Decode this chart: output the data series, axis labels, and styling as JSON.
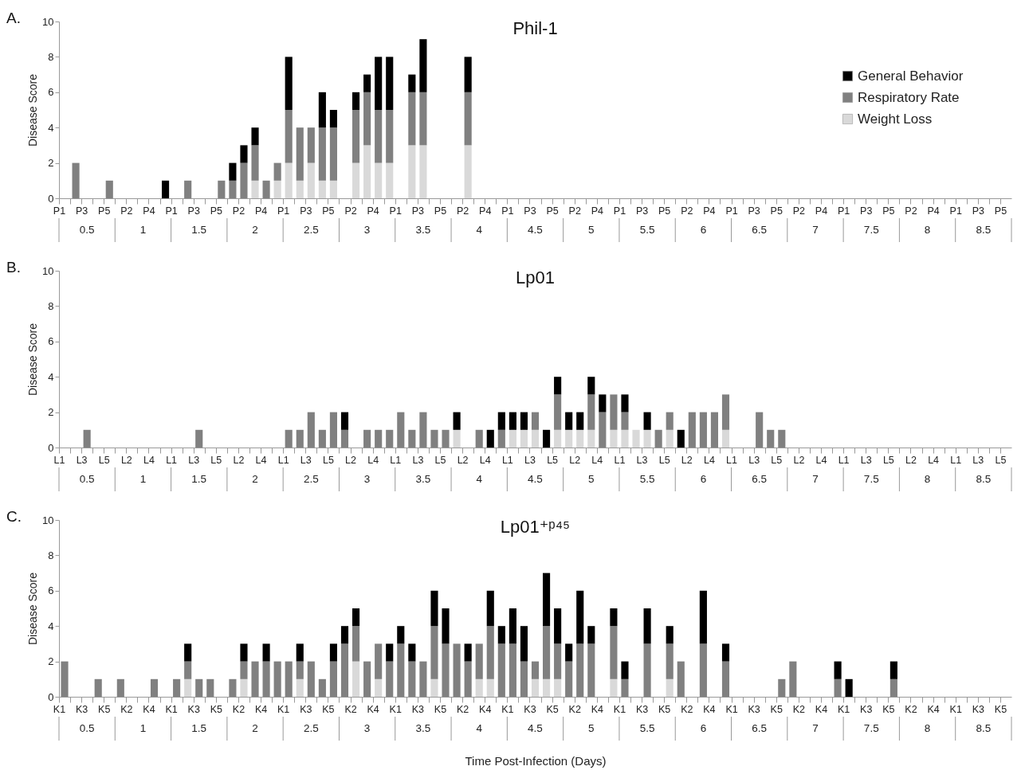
{
  "chart_data": [
    {
      "type": "bar",
      "title": "Phil-1",
      "subtitle": "A.",
      "ylabel": "Disease Score",
      "stacked": true,
      "legend": "top right",
      "ylim": [
        0,
        10
      ],
      "yticks": [
        0,
        2,
        4,
        6,
        8,
        10
      ],
      "categories": [
        "P1",
        null,
        "P3",
        null,
        "P5",
        null,
        "P2",
        null,
        "P4",
        null,
        "P1",
        null,
        "P3",
        null,
        "P5",
        null,
        "P2",
        null,
        "P4",
        null,
        "P1",
        null,
        "P3",
        null,
        "P5",
        null,
        "P2",
        null,
        "P4",
        null,
        "P1",
        null,
        "P3",
        null,
        "P5",
        null,
        "P2",
        null,
        "P4",
        null,
        "P1",
        null,
        "P3",
        null,
        "P5",
        null,
        "P2",
        null,
        "P4",
        null,
        "P1",
        null,
        "P3",
        null,
        "P5",
        null,
        "P2",
        null,
        "P4",
        null,
        "P1",
        null,
        "P3",
        null,
        "P5",
        null,
        "P2",
        null,
        "P4",
        null,
        "P1",
        null,
        "P3",
        null,
        "P5",
        null,
        "P2",
        null,
        "P4",
        null,
        "P1",
        null,
        "P3",
        null,
        "P5"
      ],
      "annotations": [
        "0.5",
        "1",
        "1.5",
        "2",
        "2.5",
        "3",
        "3.5",
        "4",
        "4.5",
        "5",
        "5.5",
        "6",
        "6.5",
        "7",
        "7.5",
        "8",
        "8.5"
      ],
      "series": [
        {
          "name": "Weight Loss",
          "color": "#d9d9d9",
          "values": [
            0,
            0,
            0,
            0,
            0,
            0,
            0,
            0,
            0,
            0,
            0,
            0,
            0,
            0,
            0,
            0,
            0,
            1,
            0,
            1,
            2,
            1,
            2,
            1,
            1,
            0,
            2,
            3,
            2,
            2,
            0,
            3,
            3,
            0,
            0,
            0,
            3,
            0,
            0,
            0,
            0,
            0,
            0,
            0,
            0,
            0,
            0,
            0,
            0,
            0,
            0,
            0,
            0,
            0,
            0,
            0,
            0,
            0,
            0,
            0,
            0,
            0,
            0,
            0,
            0,
            0,
            0,
            0,
            0,
            0,
            0,
            0,
            0,
            0,
            0,
            0,
            0,
            0,
            0,
            0,
            0,
            0,
            0,
            0,
            0
          ]
        },
        {
          "name": "Respiratory Rate",
          "color": "#808080",
          "values": [
            0,
            2,
            0,
            0,
            1,
            0,
            0,
            0,
            0,
            0,
            0,
            1,
            0,
            0,
            1,
            1,
            2,
            2,
            1,
            1,
            3,
            3,
            2,
            3,
            3,
            0,
            3,
            3,
            3,
            3,
            0,
            3,
            3,
            0,
            0,
            0,
            3,
            0,
            0,
            0,
            0,
            0,
            0,
            0,
            0,
            0,
            0,
            0,
            0,
            0,
            0,
            0,
            0,
            0,
            0,
            0,
            0,
            0,
            0,
            0,
            0,
            0,
            0,
            0,
            0,
            0,
            0,
            0,
            0,
            0,
            0,
            0,
            0,
            0,
            0,
            0,
            0,
            0,
            0,
            0,
            0,
            0,
            0,
            0,
            0
          ]
        },
        {
          "name": "General Behavior",
          "color": "#000000",
          "values": [
            0,
            0,
            0,
            0,
            0,
            0,
            0,
            0,
            0,
            1,
            0,
            0,
            0,
            0,
            0,
            1,
            1,
            1,
            0,
            0,
            3,
            0,
            0,
            2,
            1,
            0,
            1,
            1,
            3,
            3,
            0,
            1,
            3,
            0,
            0,
            0,
            2,
            0,
            0,
            0,
            0,
            0,
            0,
            0,
            0,
            0,
            0,
            0,
            0,
            0,
            0,
            0,
            0,
            0,
            0,
            0,
            0,
            0,
            0,
            0,
            0,
            0,
            0,
            0,
            0,
            0,
            0,
            0,
            0,
            0,
            0,
            0,
            0,
            0,
            0,
            0,
            0,
            0,
            0,
            0,
            0,
            0,
            0,
            0,
            0
          ]
        }
      ]
    },
    {
      "type": "bar",
      "title": "Lp01",
      "subtitle": "B.",
      "ylabel": "Disease Score",
      "stacked": true,
      "ylim": [
        0,
        10
      ],
      "yticks": [
        0,
        2,
        4,
        6,
        8,
        10
      ],
      "categories": [
        "L1",
        null,
        "L3",
        null,
        "L5",
        null,
        "L2",
        null,
        "L4",
        null,
        "L1",
        null,
        "L3",
        null,
        "L5",
        null,
        "L2",
        null,
        "L4",
        null,
        "L1",
        null,
        "L3",
        null,
        "L5",
        null,
        "L2",
        null,
        "L4",
        null,
        "L1",
        null,
        "L3",
        null,
        "L5",
        null,
        "L2",
        null,
        "L4",
        null,
        "L1",
        null,
        "L3",
        null,
        "L5",
        null,
        "L2",
        null,
        "L4",
        null,
        "L1",
        null,
        "L3",
        null,
        "L5",
        null,
        "L2",
        null,
        "L4",
        null,
        "L1",
        null,
        "L3",
        null,
        "L5",
        null,
        "L2",
        null,
        "L4",
        null,
        "L1",
        null,
        "L3",
        null,
        "L5",
        null,
        "L2",
        null,
        "L4",
        null,
        "L1",
        null,
        "L3",
        null,
        "L5"
      ],
      "annotations": [
        "0.5",
        "1",
        "1.5",
        "2",
        "2.5",
        "3",
        "3.5",
        "4",
        "4.5",
        "5",
        "5.5",
        "6",
        "6.5",
        "7",
        "7.5",
        "8",
        "8.5"
      ],
      "series": [
        {
          "color": "#d9d9d9",
          "values": [
            0,
            0,
            0,
            0,
            0,
            0,
            0,
            0,
            0,
            0,
            0,
            0,
            0,
            0,
            0,
            0,
            0,
            0,
            0,
            0,
            0,
            0,
            0,
            0,
            0,
            0,
            0,
            0,
            0,
            0,
            0,
            0,
            0,
            0,
            0,
            1,
            0,
            0,
            0,
            0,
            1,
            1,
            1,
            0,
            1,
            1,
            1,
            1,
            0,
            1,
            1,
            1,
            1,
            0,
            1,
            0,
            0,
            0,
            0,
            1,
            0,
            0,
            0,
            0,
            0,
            0,
            0,
            0,
            0,
            0,
            0,
            0,
            0,
            0,
            0,
            0,
            0,
            0,
            0,
            0,
            0,
            0,
            0,
            0,
            0
          ]
        },
        {
          "color": "#808080",
          "values": [
            0,
            0,
            1,
            0,
            0,
            0,
            0,
            0,
            0,
            0,
            0,
            0,
            1,
            0,
            0,
            0,
            0,
            0,
            0,
            0,
            1,
            1,
            2,
            1,
            2,
            1,
            0,
            1,
            1,
            1,
            2,
            1,
            2,
            1,
            1,
            0,
            0,
            1,
            0,
            1,
            0,
            0,
            1,
            0,
            2,
            0,
            0,
            2,
            2,
            2,
            1,
            0,
            0,
            1,
            1,
            0,
            2,
            2,
            2,
            2,
            0,
            0,
            2,
            1,
            1,
            0,
            0,
            0,
            0,
            0,
            0,
            0,
            0,
            0,
            0,
            0,
            0,
            0,
            0,
            0,
            0,
            0,
            0,
            0,
            0
          ]
        },
        {
          "color": "#000000",
          "values": [
            0,
            0,
            0,
            0,
            0,
            0,
            0,
            0,
            0,
            0,
            0,
            0,
            0,
            0,
            0,
            0,
            0,
            0,
            0,
            0,
            0,
            0,
            0,
            0,
            0,
            1,
            0,
            0,
            0,
            0,
            0,
            0,
            0,
            0,
            0,
            1,
            0,
            0,
            1,
            1,
            1,
            1,
            0,
            1,
            1,
            1,
            1,
            1,
            1,
            0,
            1,
            0,
            1,
            0,
            0,
            1,
            0,
            0,
            0,
            0,
            0,
            0,
            0,
            0,
            0,
            0,
            0,
            0,
            0,
            0,
            0,
            0,
            0,
            0,
            0,
            0,
            0,
            0,
            0,
            0,
            0,
            0,
            0,
            0,
            0
          ]
        }
      ]
    },
    {
      "type": "bar",
      "title": "Lp01⁺ᵖ⁴⁵",
      "subtitle": "C.",
      "ylabel": "Disease Score",
      "xlabel": "Time Post-Infection (Days)",
      "stacked": true,
      "ylim": [
        0,
        10
      ],
      "yticks": [
        0,
        2,
        4,
        6,
        8,
        10
      ],
      "categories": [
        "K1",
        null,
        "K3",
        null,
        "K5",
        null,
        "K2",
        null,
        "K4",
        null,
        "K1",
        null,
        "K3",
        null,
        "K5",
        null,
        "K2",
        null,
        "K4",
        null,
        "K1",
        null,
        "K3",
        null,
        "K5",
        null,
        "K2",
        null,
        "K4",
        null,
        "K1",
        null,
        "K3",
        null,
        "K5",
        null,
        "K2",
        null,
        "K4",
        null,
        "K1",
        null,
        "K3",
        null,
        "K5",
        null,
        "K2",
        null,
        "K4",
        null,
        "K1",
        null,
        "K3",
        null,
        "K5",
        null,
        "K2",
        null,
        "K4",
        null,
        "K1",
        null,
        "K3",
        null,
        "K5",
        null,
        "K2",
        null,
        "K4",
        null,
        "K1",
        null,
        "K3",
        null,
        "K5",
        null,
        "K2",
        null,
        "K4",
        null,
        "K1",
        null,
        "K3",
        null,
        "K5"
      ],
      "annotations": [
        "0.5",
        "1",
        "1.5",
        "2",
        "2.5",
        "3",
        "3.5",
        "4",
        "4.5",
        "5",
        "5.5",
        "6",
        "6.5",
        "7",
        "7.5",
        "8",
        "8.5"
      ],
      "series": [
        {
          "color": "#d9d9d9",
          "values": [
            0,
            0,
            0,
            0,
            0,
            0,
            0,
            0,
            0,
            0,
            0,
            1,
            0,
            0,
            0,
            0,
            1,
            0,
            0,
            0,
            0,
            1,
            0,
            0,
            0,
            0,
            2,
            0,
            1,
            0,
            0,
            0,
            0,
            1,
            0,
            0,
            0,
            1,
            1,
            0,
            0,
            0,
            1,
            1,
            1,
            0,
            0,
            0,
            0,
            1,
            0,
            0,
            0,
            0,
            1,
            0,
            0,
            0,
            0,
            0,
            0,
            0,
            0,
            0,
            0,
            0,
            0,
            0,
            0,
            0,
            0,
            0,
            0,
            0,
            0,
            0,
            0,
            0,
            0,
            0,
            0,
            0,
            0,
            0,
            0
          ]
        },
        {
          "color": "#808080",
          "values": [
            2,
            0,
            0,
            1,
            0,
            1,
            0,
            0,
            1,
            0,
            1,
            1,
            1,
            1,
            0,
            1,
            1,
            2,
            2,
            2,
            2,
            1,
            2,
            1,
            2,
            3,
            2,
            2,
            2,
            2,
            3,
            2,
            2,
            3,
            3,
            3,
            2,
            2,
            3,
            3,
            3,
            2,
            1,
            3,
            2,
            2,
            3,
            3,
            0,
            3,
            1,
            0,
            3,
            0,
            2,
            2,
            0,
            3,
            0,
            2,
            0,
            0,
            0,
            0,
            1,
            2,
            0,
            0,
            0,
            1,
            0,
            0,
            0,
            0,
            1,
            0,
            0,
            0,
            0,
            0,
            0,
            0,
            0,
            0,
            0
          ]
        },
        {
          "color": "#000000",
          "values": [
            0,
            0,
            0,
            0,
            0,
            0,
            0,
            0,
            0,
            0,
            0,
            1,
            0,
            0,
            0,
            0,
            1,
            0,
            1,
            0,
            0,
            1,
            0,
            0,
            1,
            1,
            1,
            0,
            0,
            1,
            1,
            1,
            0,
            2,
            2,
            0,
            1,
            0,
            2,
            1,
            2,
            2,
            0,
            3,
            2,
            1,
            3,
            1,
            0,
            1,
            1,
            0,
            2,
            0,
            1,
            0,
            0,
            3,
            0,
            1,
            0,
            0,
            0,
            0,
            0,
            0,
            0,
            0,
            0,
            1,
            1,
            0,
            0,
            0,
            1,
            0,
            0,
            0,
            0,
            0,
            0,
            0,
            0,
            0,
            0
          ]
        }
      ]
    }
  ]
}
